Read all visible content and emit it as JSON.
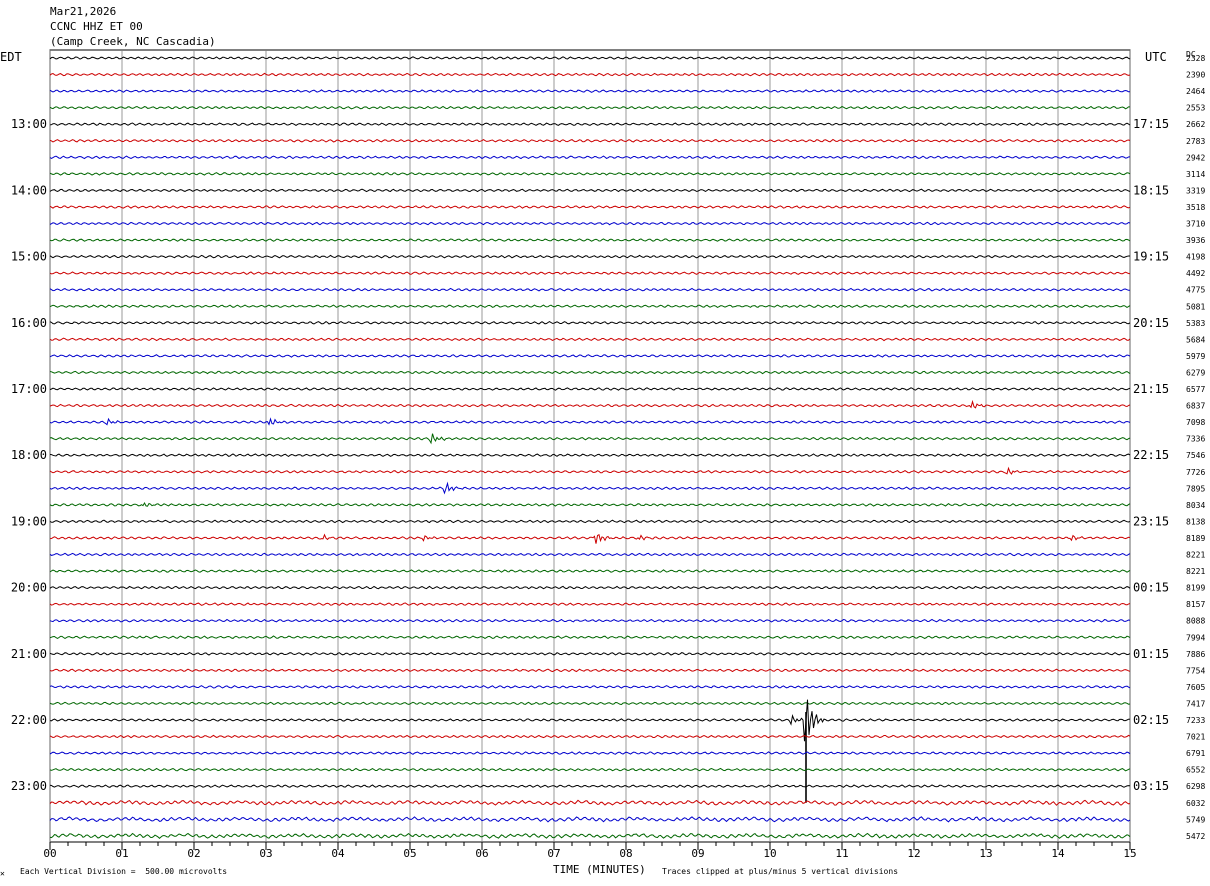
{
  "header": {
    "date": "Mar21,2026",
    "station": "CCNC HHZ ET 00",
    "location": "(Camp Creek, NC Cascadia)"
  },
  "labels": {
    "left_tz": "EDT",
    "right_tz": "UTC",
    "dc": "DC"
  },
  "footer": {
    "scale": "Each Vertical Division =  500.00 microvolts",
    "xlabel": "TIME (MINUTES)",
    "clip": "Traces clipped at plus/minus 5 vertical divisions",
    "mark": "✕"
  },
  "chart_data": {
    "type": "line",
    "title": "CCNC HHZ ET 00",
    "xlabel": "TIME (MINUTES)",
    "xlim": [
      0,
      15
    ],
    "x_ticks": [
      "00",
      "01",
      "02",
      "03",
      "04",
      "05",
      "06",
      "07",
      "08",
      "09",
      "10",
      "11",
      "12",
      "13",
      "14",
      "15"
    ],
    "trace_minutes": 15,
    "trace_count": 48,
    "trace_colors": [
      "#000000",
      "#cc0000",
      "#0000cc",
      "#006600"
    ],
    "left_hour_labels": [
      {
        "trace": 4,
        "text": "13:00"
      },
      {
        "trace": 8,
        "text": "14:00"
      },
      {
        "trace": 12,
        "text": "15:00"
      },
      {
        "trace": 16,
        "text": "16:00"
      },
      {
        "trace": 20,
        "text": "17:00"
      },
      {
        "trace": 24,
        "text": "18:00"
      },
      {
        "trace": 28,
        "text": "19:00"
      },
      {
        "trace": 32,
        "text": "20:00"
      },
      {
        "trace": 36,
        "text": "21:00"
      },
      {
        "trace": 40,
        "text": "22:00"
      },
      {
        "trace": 44,
        "text": "23:00"
      }
    ],
    "right_hour_labels": [
      {
        "trace": 4,
        "text": "17:15"
      },
      {
        "trace": 8,
        "text": "18:15"
      },
      {
        "trace": 12,
        "text": "19:15"
      },
      {
        "trace": 16,
        "text": "20:15"
      },
      {
        "trace": 20,
        "text": "21:15"
      },
      {
        "trace": 24,
        "text": "22:15"
      },
      {
        "trace": 28,
        "text": "23:15"
      },
      {
        "trace": 32,
        "text": "00:15"
      },
      {
        "trace": 36,
        "text": "01:15"
      },
      {
        "trace": 40,
        "text": "02:15"
      },
      {
        "trace": 44,
        "text": "03:15"
      }
    ],
    "dc_offsets": [
      "2328",
      "2390",
      "2464",
      "2553",
      "2662",
      "2783",
      "2942",
      "3114",
      "3319",
      "3518",
      "3710",
      "3936",
      "4198",
      "4492",
      "4775",
      "5081",
      "5383",
      "5684",
      "5979",
      "6279",
      "6577",
      "6837",
      "7098",
      "7336",
      "7546",
      "7726",
      "7895",
      "8034",
      "8138",
      "8189",
      "8221",
      "8221",
      "8199",
      "8157",
      "8088",
      "7994",
      "7886",
      "7754",
      "7605",
      "7417",
      "7233",
      "7021",
      "6791",
      "6552",
      "6298",
      "6032",
      "5749",
      "5472"
    ],
    "events": [
      {
        "trace": 21,
        "minute": 12.8,
        "amplitude": 0.7
      },
      {
        "trace": 22,
        "minute": 0.8,
        "amplitude": 0.5
      },
      {
        "trace": 22,
        "minute": 3.05,
        "amplitude": 0.7
      },
      {
        "trace": 23,
        "minute": 5.3,
        "amplitude": 0.9
      },
      {
        "trace": 25,
        "minute": 13.3,
        "amplitude": 0.6
      },
      {
        "trace": 26,
        "minute": 5.5,
        "amplitude": 1.0
      },
      {
        "trace": 27,
        "minute": 1.3,
        "amplitude": 0.4
      },
      {
        "trace": 29,
        "minute": 3.8,
        "amplitude": 0.4
      },
      {
        "trace": 29,
        "minute": 5.2,
        "amplitude": 0.4
      },
      {
        "trace": 29,
        "minute": 7.6,
        "amplitude": 1.0
      },
      {
        "trace": 29,
        "minute": 8.2,
        "amplitude": 0.4
      },
      {
        "trace": 29,
        "minute": 14.2,
        "amplitude": 0.4
      },
      {
        "trace": 40,
        "minute": 10.3,
        "amplitude": 0.8
      },
      {
        "trace": 40,
        "minute": 10.5,
        "amplitude": 5.0
      }
    ]
  }
}
